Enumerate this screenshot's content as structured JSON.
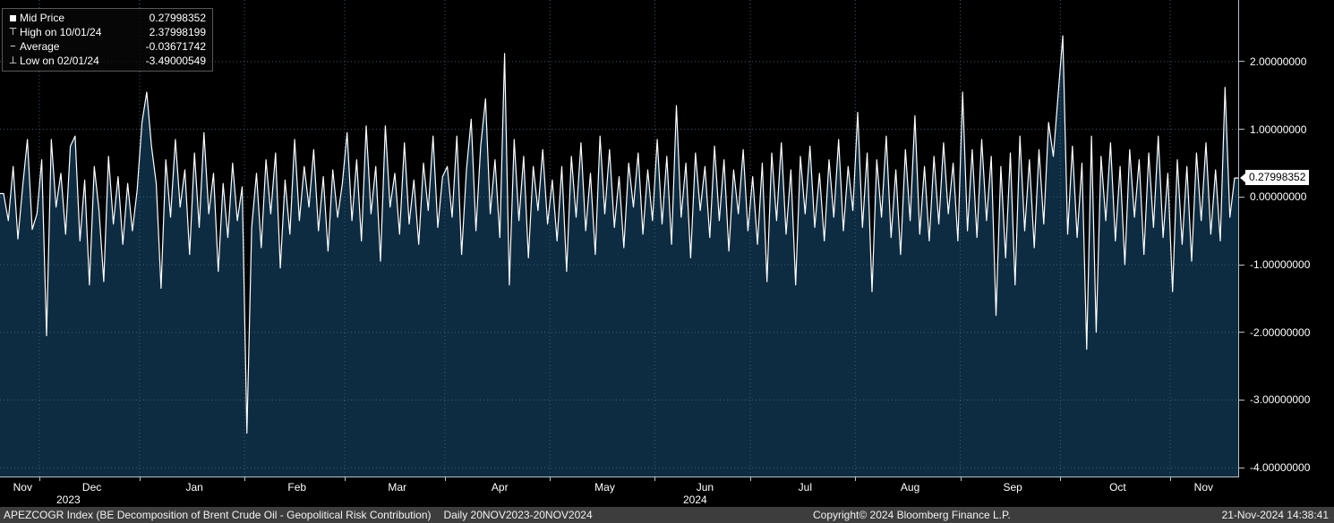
{
  "legend": {
    "items": [
      {
        "icon": "square-icon",
        "label": "Mid Price",
        "value": "0.27998352"
      },
      {
        "icon": "high-icon",
        "label": "High on 10/01/24",
        "value": "2.37998199"
      },
      {
        "icon": "average-icon",
        "label": "Average",
        "value": "-0.03671742"
      },
      {
        "icon": "low-icon",
        "label": "Low on 02/01/24",
        "value": "-3.49000549"
      }
    ]
  },
  "axis": {
    "last_price_label": "0.27998352",
    "y_tick_labels": [
      "2.00000000",
      "1.00000000",
      "0.00000000",
      "-1.00000000",
      "-2.00000000",
      "-3.00000000",
      "-4.00000000"
    ]
  },
  "footer": {
    "instrument": "APEZCOGR Index (BE Decomposition of Brent Crude Oil - Geopolitical Risk Contribution)",
    "period": "Daily 20NOV2023-20NOV2024",
    "copyright": "Copyright© 2024 Bloomberg Finance L.P.",
    "timestamp": "21-Nov-2024 14:38:41"
  },
  "colors": {
    "background": "#000000",
    "area_fill": "#0d2c42",
    "line": "#ffffff",
    "grid": "#3f5a6d",
    "footer_bar": "#3d3d3d",
    "last_tag_bg": "#ffffff"
  },
  "chart_data": {
    "type": "area",
    "title": "APEZCOGR Index - BE Decomposition of Brent Crude Oil - Geopolitical Risk Contribution",
    "series_name": "Mid Price",
    "frequency": "Daily",
    "date_range": "20NOV2023-20NOV2024",
    "ylim": [
      -4.13,
      2.91
    ],
    "y_ticks": [
      2,
      1,
      0,
      -1,
      -2,
      -3,
      -4
    ],
    "grid": "dotted",
    "legend_position": "top-left",
    "last_value": 0.27998352,
    "high": {
      "date": "10/01/24",
      "value": 2.37998199
    },
    "low": {
      "date": "02/01/24",
      "value": -3.49000549
    },
    "average": -0.03671742,
    "months": [
      {
        "label": "Nov",
        "start": 0
      },
      {
        "label": "Dec",
        "start": 8
      },
      {
        "label": "Jan",
        "start": 29
      },
      {
        "label": "Feb",
        "start": 51
      },
      {
        "label": "Mar",
        "start": 72
      },
      {
        "label": "Apr",
        "start": 93
      },
      {
        "label": "May",
        "start": 115
      },
      {
        "label": "Jun",
        "start": 137
      },
      {
        "label": "Jul",
        "start": 157
      },
      {
        "label": "Aug",
        "start": 179
      },
      {
        "label": "Sep",
        "start": 201
      },
      {
        "label": "Oct",
        "start": 222
      },
      {
        "label": "Nov",
        "start": 245
      }
    ],
    "year_labels": [
      {
        "label": "2023",
        "x": 63
      },
      {
        "label": "2024",
        "x": 763
      }
    ],
    "values": [
      0.05,
      -0.35,
      0.45,
      -0.62,
      0.15,
      0.85,
      -0.48,
      -0.25,
      0.55,
      -2.05,
      0.85,
      -0.15,
      0.35,
      -0.55,
      0.75,
      0.9,
      -0.65,
      0.25,
      -1.3,
      0.45,
      -0.2,
      -1.25,
      0.6,
      -0.4,
      0.3,
      -0.7,
      0.2,
      -0.5,
      0.1,
      1.1,
      1.55,
      0.75,
      0.2,
      -1.35,
      0.55,
      -0.3,
      0.85,
      -0.15,
      0.4,
      -0.85,
      0.65,
      -0.45,
      0.95,
      -0.25,
      0.35,
      -1.1,
      0.2,
      -0.6,
      0.5,
      -0.35,
      0.15,
      -3.49,
      -0.45,
      0.35,
      -0.75,
      0.55,
      -0.25,
      0.65,
      -1.05,
      0.25,
      -0.55,
      0.85,
      -0.35,
      0.45,
      -0.15,
      0.7,
      -0.5,
      0.3,
      -0.8,
      0.4,
      -0.3,
      0.2,
      0.95,
      -0.35,
      0.55,
      -0.65,
      1.05,
      -0.25,
      0.45,
      -0.95,
      1.05,
      -0.15,
      0.35,
      -0.55,
      0.8,
      -0.4,
      0.25,
      -0.7,
      0.5,
      -0.2,
      0.9,
      -0.45,
      0.3,
      0.45,
      -0.3,
      0.9,
      -0.85,
      0.4,
      1.15,
      -0.5,
      0.75,
      1.45,
      -0.25,
      0.55,
      -0.6,
      2.12,
      -1.3,
      0.85,
      -0.35,
      0.6,
      -0.9,
      0.45,
      -0.2,
      0.7,
      -0.4,
      0.25,
      -0.65,
      0.45,
      -1.1,
      0.6,
      -0.3,
      0.8,
      -0.5,
      0.35,
      -0.85,
      0.9,
      -0.25,
      0.7,
      -0.45,
      0.3,
      -0.75,
      0.5,
      -0.15,
      0.65,
      -0.55,
      0.4,
      -0.35,
      0.85,
      -0.4,
      0.6,
      -0.7,
      1.35,
      -0.3,
      0.5,
      -0.9,
      0.65,
      -0.2,
      0.45,
      -0.6,
      0.75,
      -0.35,
      0.55,
      -0.8,
      0.4,
      -0.25,
      0.7,
      -0.5,
      0.3,
      -0.7,
      0.5,
      -1.25,
      0.65,
      -0.35,
      0.8,
      -0.55,
      0.4,
      -1.3,
      0.6,
      -0.25,
      0.75,
      -0.45,
      0.35,
      -0.65,
      0.55,
      -0.3,
      0.85,
      -0.5,
      0.45,
      -0.2,
      1.25,
      -0.45,
      0.65,
      -1.4,
      0.55,
      -0.3,
      0.9,
      -0.6,
      0.4,
      -0.85,
      0.7,
      -0.35,
      1.2,
      -0.55,
      0.45,
      -0.65,
      0.6,
      -0.4,
      0.8,
      -0.25,
      0.5,
      -0.65,
      1.55,
      -0.5,
      0.7,
      -0.6,
      0.85,
      -0.35,
      0.6,
      -1.75,
      0.45,
      -0.9,
      0.65,
      -1.3,
      0.9,
      -0.5,
      0.55,
      -0.75,
      0.7,
      -0.4,
      1.1,
      0.6,
      1.5,
      2.38,
      -0.55,
      0.75,
      -0.6,
      0.5,
      -2.25,
      0.9,
      -2.0,
      0.6,
      -0.35,
      0.8,
      -0.65,
      0.45,
      -1.0,
      0.7,
      -0.3,
      0.55,
      -0.85,
      0.65,
      -0.45,
      0.9,
      -0.6,
      0.35,
      -1.4,
      0.55,
      -0.7,
      0.45,
      -0.95,
      0.65,
      -0.35,
      0.8,
      -0.55,
      0.4,
      -0.65,
      1.62,
      -0.3,
      0.28
    ]
  }
}
